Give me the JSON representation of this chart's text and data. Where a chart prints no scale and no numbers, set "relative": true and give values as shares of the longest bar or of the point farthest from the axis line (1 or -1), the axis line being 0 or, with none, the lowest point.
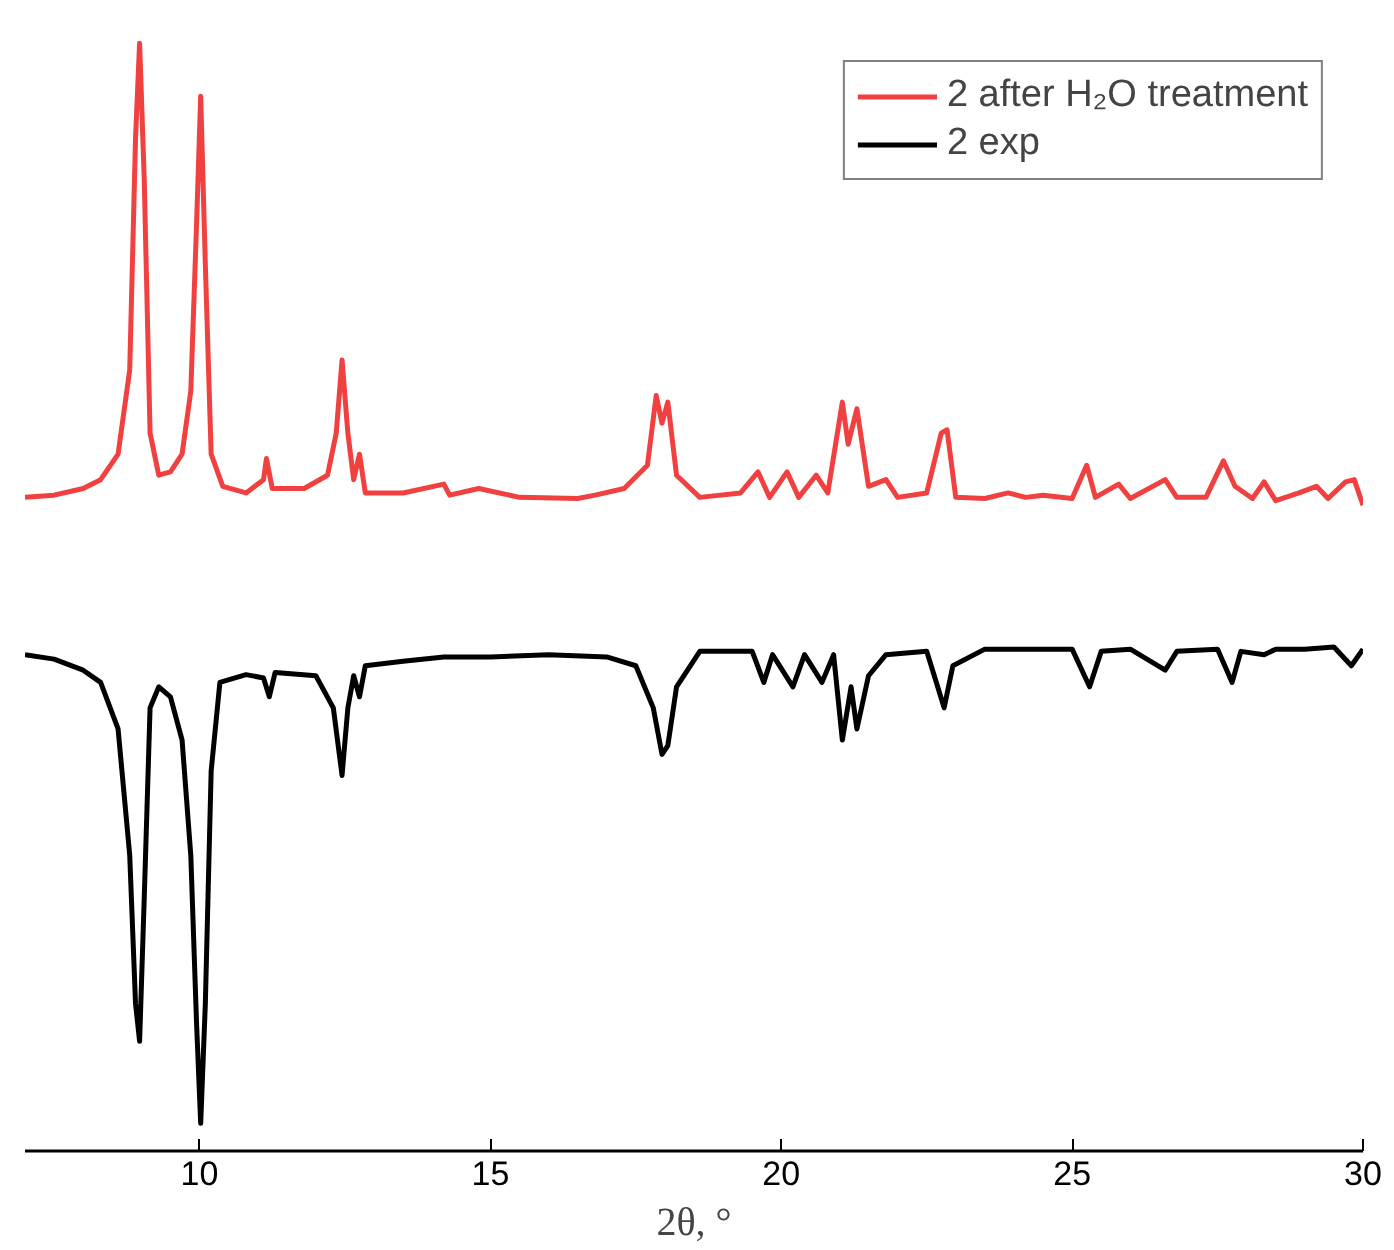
{
  "chart_data": {
    "type": "line",
    "relative": true,
    "xlabel": "2θ, °",
    "xlim": [
      7,
      30
    ],
    "xticks": [
      10,
      15,
      20,
      25,
      30
    ],
    "grid": false,
    "legend": "top right",
    "line_style": "solid",
    "marker": "none",
    "series": [
      {
        "name": "2 after H₂O treatment",
        "color": "#f04040",
        "x": [
          7.0,
          7.5,
          8.0,
          8.3,
          8.6,
          8.8,
          8.9,
          8.97,
          9.05,
          9.15,
          9.3,
          9.5,
          9.7,
          9.85,
          9.95,
          10.02,
          10.1,
          10.2,
          10.4,
          10.8,
          11.1,
          11.15,
          11.25,
          11.8,
          12.2,
          12.35,
          12.45,
          12.55,
          12.65,
          12.75,
          12.85,
          13.5,
          14.2,
          14.3,
          14.8,
          15.5,
          16.5,
          16.8,
          17.3,
          17.7,
          17.85,
          17.95,
          18.05,
          18.2,
          18.6,
          19.3,
          19.6,
          19.8,
          20.1,
          20.3,
          20.6,
          20.8,
          21.05,
          21.15,
          21.3,
          21.5,
          21.8,
          22.0,
          22.5,
          22.75,
          22.85,
          23.0,
          23.5,
          23.9,
          24.2,
          24.5,
          25.0,
          25.25,
          25.4,
          25.8,
          26.0,
          26.6,
          26.8,
          27.3,
          27.6,
          27.8,
          28.1,
          28.3,
          28.5,
          28.9,
          29.2,
          29.4,
          29.7,
          29.85,
          30.0
        ],
        "values": [
          0.59,
          0.592,
          0.598,
          0.606,
          0.629,
          0.705,
          0.914,
          1.0,
          0.876,
          0.648,
          0.61,
          0.613,
          0.629,
          0.686,
          0.838,
          0.952,
          0.8,
          0.629,
          0.6,
          0.594,
          0.606,
          0.625,
          0.598,
          0.598,
          0.61,
          0.648,
          0.714,
          0.648,
          0.606,
          0.629,
          0.594,
          0.594,
          0.602,
          0.592,
          0.598,
          0.59,
          0.589,
          0.592,
          0.598,
          0.619,
          0.682,
          0.657,
          0.676,
          0.61,
          0.59,
          0.594,
          0.613,
          0.59,
          0.613,
          0.59,
          0.61,
          0.594,
          0.676,
          0.638,
          0.67,
          0.6,
          0.606,
          0.59,
          0.594,
          0.648,
          0.651,
          0.59,
          0.589,
          0.594,
          0.59,
          0.592,
          0.589,
          0.619,
          0.59,
          0.602,
          0.589,
          0.606,
          0.59,
          0.59,
          0.623,
          0.6,
          0.589,
          0.604,
          0.587,
          0.594,
          0.6,
          0.589,
          0.604,
          0.606,
          0.583
        ]
      },
      {
        "name": "2 exp",
        "color": "#000000",
        "x": [
          7.0,
          7.5,
          8.0,
          8.3,
          8.6,
          8.8,
          8.9,
          8.97,
          9.05,
          9.15,
          9.3,
          9.5,
          9.7,
          9.85,
          9.95,
          10.02,
          10.1,
          10.2,
          10.35,
          10.8,
          11.1,
          11.2,
          11.3,
          12.0,
          12.3,
          12.45,
          12.55,
          12.65,
          12.75,
          12.85,
          13.5,
          14.2,
          15.0,
          16.0,
          17.0,
          17.5,
          17.8,
          17.95,
          18.05,
          18.2,
          18.6,
          19.5,
          19.7,
          19.85,
          20.2,
          20.4,
          20.7,
          20.9,
          21.05,
          21.2,
          21.3,
          21.5,
          21.8,
          22.5,
          22.8,
          22.95,
          23.5,
          24.5,
          25.0,
          25.3,
          25.5,
          26.0,
          26.6,
          26.8,
          27.5,
          27.75,
          27.9,
          28.3,
          28.5,
          29.0,
          29.5,
          29.8,
          30.0
        ],
        "values": [
          0.448,
          0.444,
          0.434,
          0.423,
          0.381,
          0.267,
          0.133,
          0.099,
          0.229,
          0.4,
          0.419,
          0.41,
          0.371,
          0.267,
          0.114,
          0.025,
          0.133,
          0.343,
          0.423,
          0.43,
          0.427,
          0.41,
          0.432,
          0.429,
          0.4,
          0.339,
          0.4,
          0.429,
          0.41,
          0.438,
          0.442,
          0.446,
          0.446,
          0.448,
          0.446,
          0.438,
          0.4,
          0.358,
          0.366,
          0.419,
          0.451,
          0.451,
          0.423,
          0.448,
          0.419,
          0.448,
          0.423,
          0.448,
          0.371,
          0.419,
          0.381,
          0.429,
          0.448,
          0.451,
          0.4,
          0.438,
          0.453,
          0.453,
          0.453,
          0.419,
          0.451,
          0.453,
          0.434,
          0.451,
          0.453,
          0.423,
          0.451,
          0.448,
          0.453,
          0.453,
          0.455,
          0.438,
          0.453
        ]
      }
    ]
  }
}
